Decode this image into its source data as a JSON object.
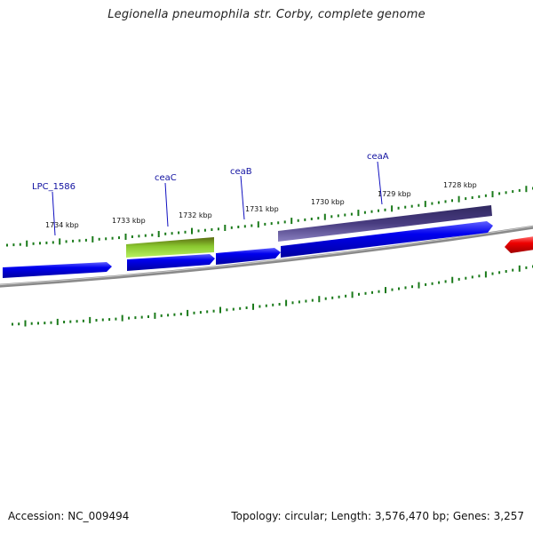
{
  "title": "Legionella pneumophila str. Corby, complete genome",
  "footer": {
    "accession": "Accession: NC_009494",
    "stats": "Topology: circular; Length: 3,576,470 bp; Genes: 3,257"
  },
  "scale_labels": [
    "1734 kbp",
    "1733 kbp",
    "1732 kbp",
    "1731 kbp",
    "1730 kbp",
    "1729 kbp",
    "1728 kbp"
  ],
  "gene_labels": [
    "LPC_1586",
    "ceaC",
    "ceaB",
    "ceaA"
  ],
  "colors": {
    "forward_gene": "#0000ee",
    "reverse_gene": "#ee0000",
    "tick": "#1a7a1a",
    "backbone": "#808080",
    "label": "#1010a0",
    "ceaC_bar": "#8ac830",
    "ceaA_bar": "#483c80"
  }
}
